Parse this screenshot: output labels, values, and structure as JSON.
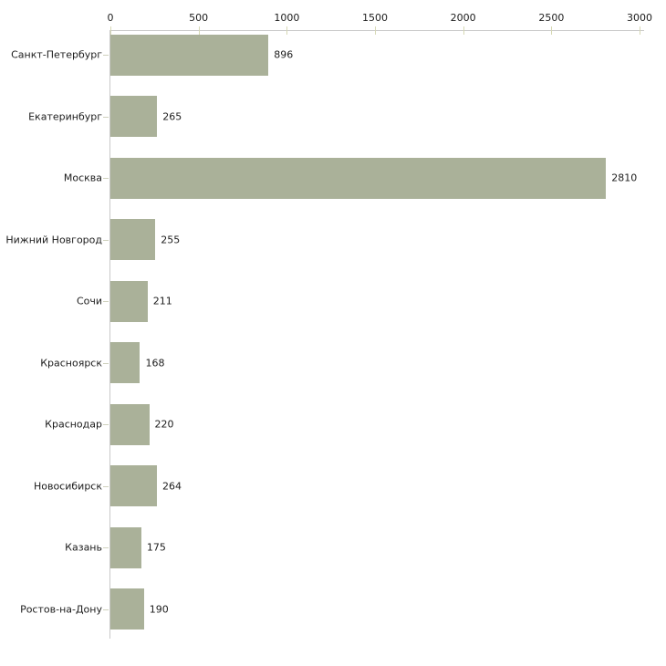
{
  "chart_data": {
    "type": "bar",
    "orientation": "horizontal",
    "title": "",
    "xlabel": "",
    "ylabel": "",
    "xlim": [
      0,
      3000
    ],
    "axis_position": "top",
    "grid": false,
    "x_ticks": [
      "0",
      "500",
      "1000",
      "1500",
      "2000",
      "2500",
      "3000"
    ],
    "x_tick_values": [
      0,
      500,
      1000,
      1500,
      2000,
      2500,
      3000
    ],
    "categories": [
      "Санкт-Петербург",
      "Екатеринбург",
      "Москва",
      "Нижний Новгород",
      "Сочи",
      "Красноярск",
      "Краснодар",
      "Новосибирск",
      "Казань",
      "Ростов-на-Дону"
    ],
    "values": [
      896,
      265,
      2810,
      255,
      211,
      168,
      220,
      264,
      175,
      190
    ],
    "value_labels": [
      "896",
      "265",
      "2810",
      "255",
      "211",
      "168",
      "220",
      "264",
      "175",
      "190"
    ],
    "colors": {
      "bar": "#aab199",
      "axis_line": "#c9c9c9",
      "x_tick": "#d6d8b4",
      "y_tick": "#cfd1bd",
      "text": "#1c1c1c",
      "background": "#ffffff"
    }
  }
}
